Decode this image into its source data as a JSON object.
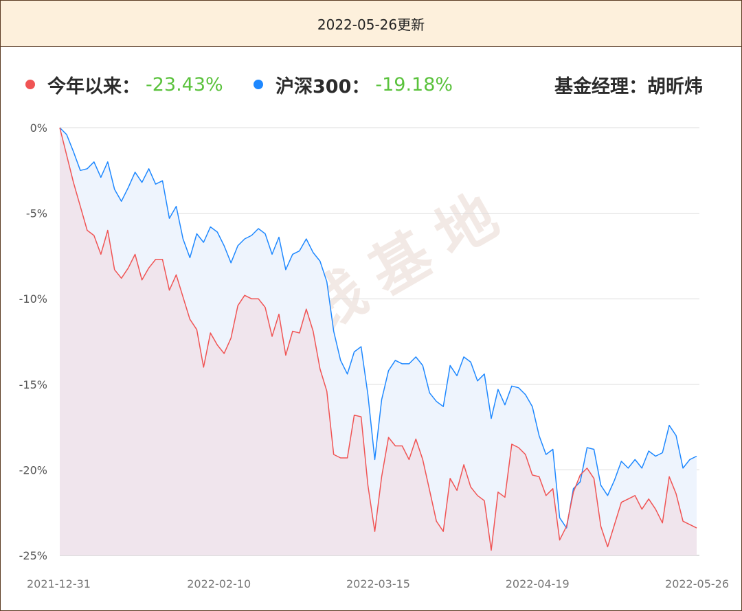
{
  "banner": {
    "text": "2022-05-26更新"
  },
  "legend": {
    "fund": {
      "label": "今年以来：",
      "value": "-23.43%",
      "color": "#f05454"
    },
    "index": {
      "label": "沪深300：",
      "value": "-19.18%",
      "color": "#1e88ff"
    },
    "manager": "基金经理：胡昕炜",
    "value_color": "#5ac23c"
  },
  "watermark": "搞钱基地",
  "chart_data": {
    "type": "area",
    "ylim": [
      -25,
      0
    ],
    "yticks": [
      0,
      -5,
      -10,
      -15,
      -20,
      -25
    ],
    "ytick_labels": [
      "0%",
      "-5%",
      "-10%",
      "-15%",
      "-20%",
      "-25%"
    ],
    "xtick_labels": [
      "2021-12-31",
      "2022-02-10",
      "2022-03-15",
      "2022-04-19",
      "2022-05-26"
    ],
    "grid": true,
    "series": [
      {
        "name": "沪深300",
        "color": "#1e88ff",
        "values": [
          0,
          -0.4,
          -1.4,
          -2.5,
          -2.4,
          -2.0,
          -2.9,
          -2.0,
          -3.6,
          -4.3,
          -3.5,
          -2.6,
          -3.2,
          -2.4,
          -3.3,
          -3.1,
          -5.3,
          -4.6,
          -6.5,
          -7.6,
          -6.2,
          -6.7,
          -5.8,
          -6.1,
          -6.9,
          -7.9,
          -6.9,
          -6.5,
          -6.3,
          -5.9,
          -6.2,
          -7.4,
          -6.4,
          -8.3,
          -7.4,
          -7.2,
          -6.5,
          -7.3,
          -7.8,
          -9.0,
          -11.9,
          -13.6,
          -14.4,
          -13.1,
          -12.8,
          -15.6,
          -19.4,
          -15.9,
          -14.2,
          -13.6,
          -13.8,
          -13.8,
          -13.4,
          -13.9,
          -15.5,
          -16.0,
          -16.3,
          -13.9,
          -14.5,
          -13.4,
          -13.7,
          -14.8,
          -14.4,
          -17.0,
          -15.3,
          -16.2,
          -15.1,
          -15.2,
          -15.6,
          -16.3,
          -18.0,
          -19.1,
          -18.8,
          -22.8,
          -23.4,
          -21.1,
          -20.7,
          -18.7,
          -18.8,
          -20.9,
          -21.5,
          -20.6,
          -19.5,
          -19.9,
          -19.4,
          -19.9,
          -18.9,
          -19.2,
          -19.0,
          -17.4,
          -18.0,
          -19.9,
          -19.4,
          -19.2
        ]
      },
      {
        "name": "今年以来",
        "color": "#f05454",
        "values": [
          0,
          -1.6,
          -3.2,
          -4.6,
          -6.0,
          -6.3,
          -7.4,
          -6.0,
          -8.3,
          -8.8,
          -8.2,
          -7.4,
          -8.9,
          -8.2,
          -7.7,
          -7.7,
          -9.5,
          -8.6,
          -9.9,
          -11.2,
          -11.8,
          -14.0,
          -12.0,
          -12.7,
          -13.2,
          -12.3,
          -10.4,
          -9.8,
          -10.0,
          -10.0,
          -10.5,
          -12.2,
          -10.9,
          -13.3,
          -11.9,
          -12.0,
          -10.6,
          -11.9,
          -14.1,
          -15.4,
          -19.1,
          -19.3,
          -19.3,
          -16.8,
          -16.9,
          -20.9,
          -23.6,
          -20.4,
          -18.1,
          -18.6,
          -18.6,
          -19.4,
          -18.2,
          -19.4,
          -21.2,
          -23.0,
          -23.6,
          -20.5,
          -21.2,
          -19.7,
          -21.0,
          -21.5,
          -21.8,
          -24.7,
          -21.3,
          -21.6,
          -18.5,
          -18.7,
          -19.1,
          -20.3,
          -20.4,
          -21.5,
          -21.1,
          -24.1,
          -23.3,
          -21.3,
          -20.3,
          -19.9,
          -20.5,
          -23.3,
          -24.5,
          -23.2,
          -21.9,
          -21.7,
          -21.5,
          -22.3,
          -21.7,
          -22.3,
          -23.1,
          -20.4,
          -21.4,
          -23.0,
          -23.2,
          -23.4
        ]
      }
    ]
  }
}
